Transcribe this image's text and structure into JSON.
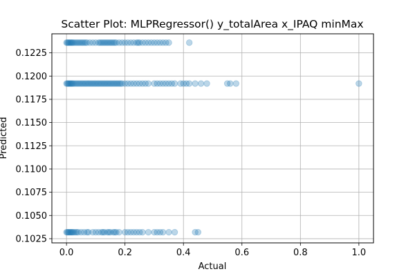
{
  "chart_data": {
    "type": "scatter",
    "title": "Scatter Plot: MLPRegressor() y_totalArea x_IPAQ minMax",
    "xlabel": "Actual",
    "ylabel": "Predicted",
    "xlim": [
      -0.05,
      1.05
    ],
    "ylim": [
      0.10205,
      0.12455
    ],
    "xticks": [
      0.0,
      0.2,
      0.4,
      0.6,
      0.8,
      1.0
    ],
    "xtick_labels": [
      "0.0",
      "0.2",
      "0.4",
      "0.6",
      "0.8",
      "1.0"
    ],
    "yticks": [
      0.1025,
      0.105,
      0.1075,
      0.11,
      0.1125,
      0.115,
      0.1175,
      0.12,
      0.1225
    ],
    "ytick_labels": [
      "0.1025",
      "0.1050",
      "0.1075",
      "0.1100",
      "0.1125",
      "0.1150",
      "0.1175",
      "0.1200",
      "0.1225"
    ],
    "grid": true,
    "marker_color": "#1f77b4",
    "marker_alpha": 0.3,
    "levels": [
      {
        "y": 0.1236,
        "x": [
          0.0,
          0.003,
          0.006,
          0.009,
          0.012,
          0.015,
          0.018,
          0.021,
          0.025,
          0.03,
          0.035,
          0.04,
          0.045,
          0.05,
          0.055,
          0.06,
          0.065,
          0.07,
          0.08,
          0.09,
          0.1,
          0.11,
          0.115,
          0.12,
          0.125,
          0.13,
          0.135,
          0.14,
          0.145,
          0.15,
          0.155,
          0.16,
          0.165,
          0.17,
          0.18,
          0.19,
          0.2,
          0.21,
          0.22,
          0.23,
          0.24,
          0.245,
          0.25,
          0.26,
          0.27,
          0.28,
          0.29,
          0.3,
          0.31,
          0.32,
          0.33,
          0.34,
          0.35,
          0.42
        ]
      },
      {
        "y": 0.1192,
        "x": [
          0.0,
          0.003,
          0.006,
          0.009,
          0.012,
          0.015,
          0.018,
          0.021,
          0.025,
          0.03,
          0.035,
          0.04,
          0.045,
          0.05,
          0.055,
          0.06,
          0.065,
          0.07,
          0.075,
          0.08,
          0.085,
          0.09,
          0.095,
          0.1,
          0.105,
          0.11,
          0.115,
          0.12,
          0.125,
          0.13,
          0.135,
          0.14,
          0.145,
          0.15,
          0.155,
          0.16,
          0.165,
          0.17,
          0.175,
          0.18,
          0.185,
          0.19,
          0.2,
          0.21,
          0.22,
          0.23,
          0.24,
          0.25,
          0.26,
          0.27,
          0.28,
          0.3,
          0.31,
          0.32,
          0.33,
          0.34,
          0.35,
          0.36,
          0.37,
          0.39,
          0.4,
          0.41,
          0.42,
          0.44,
          0.46,
          0.48,
          0.55,
          0.56,
          0.58,
          1.0
        ]
      },
      {
        "y": 0.1032,
        "x": [
          0.0,
          0.003,
          0.006,
          0.009,
          0.012,
          0.015,
          0.018,
          0.021,
          0.025,
          0.03,
          0.035,
          0.04,
          0.05,
          0.06,
          0.07,
          0.075,
          0.09,
          0.1,
          0.11,
          0.12,
          0.125,
          0.13,
          0.14,
          0.145,
          0.15,
          0.16,
          0.165,
          0.17,
          0.18,
          0.2,
          0.21,
          0.22,
          0.23,
          0.24,
          0.25,
          0.26,
          0.28,
          0.3,
          0.31,
          0.32,
          0.33,
          0.35,
          0.37,
          0.44,
          0.45
        ]
      }
    ]
  }
}
